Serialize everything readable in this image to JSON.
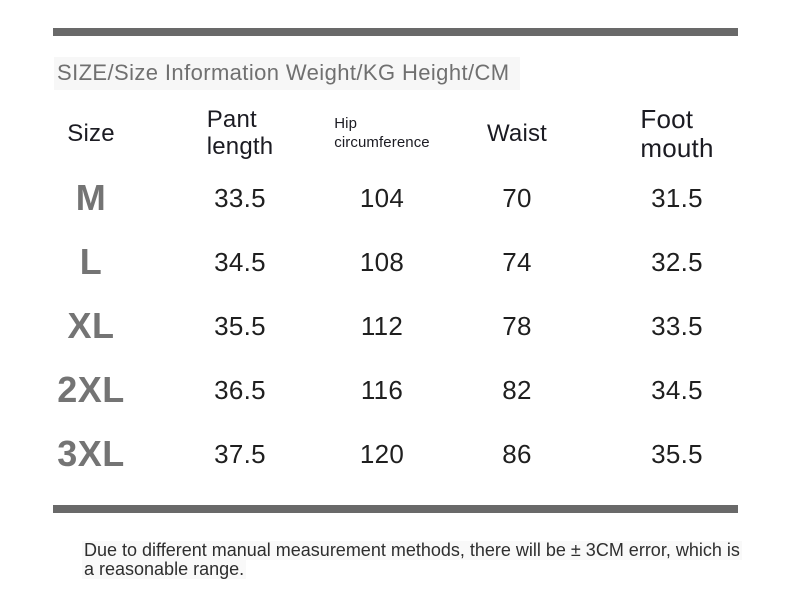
{
  "title": "SIZE/Size Information Weight/KG Height/CM",
  "table": {
    "columns": [
      "Size",
      "Pant length",
      "Hip circumference",
      "Waist",
      "Foot mouth"
    ],
    "rows": [
      {
        "size": "M",
        "pant_length": "33.5",
        "hip_circumference": "104",
        "waist": "70",
        "foot_mouth": "31.5"
      },
      {
        "size": "L",
        "pant_length": "34.5",
        "hip_circumference": "108",
        "waist": "74",
        "foot_mouth": "32.5"
      },
      {
        "size": "XL",
        "pant_length": "35.5",
        "hip_circumference": "112",
        "waist": "78",
        "foot_mouth": "33.5"
      },
      {
        "size": "2XL",
        "pant_length": "36.5",
        "hip_circumference": "116",
        "waist": "82",
        "foot_mouth": "34.5"
      },
      {
        "size": "3XL",
        "pant_length": "37.5",
        "hip_circumference": "120",
        "waist": "86",
        "foot_mouth": "35.5"
      }
    ]
  },
  "note": {
    "line1": "Due to different manual measurement methods, there will be ± 3CM error, which is",
    "line2": "a reasonable range."
  },
  "colors": {
    "divider": "#696969",
    "title_text": "#707070",
    "header_text": "#1b1b22",
    "value_text": "#1f1f1f",
    "size_text": "#747474",
    "note_text": "#2e2e2e"
  }
}
